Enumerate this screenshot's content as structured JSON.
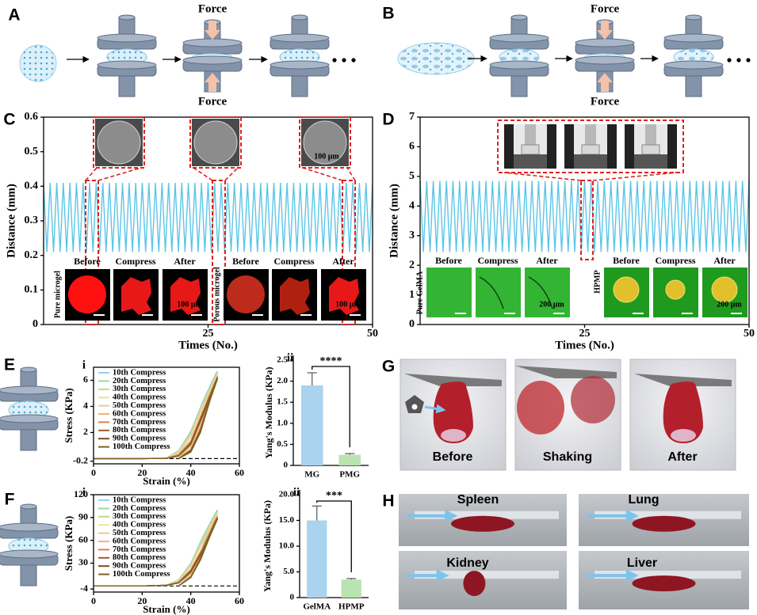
{
  "panel_labels": [
    "A",
    "B",
    "C",
    "D",
    "E",
    "F",
    "G",
    "H"
  ],
  "force": "Force",
  "G": {
    "labels": [
      "Before",
      "Shaking",
      "After"
    ]
  },
  "H": {
    "labels": [
      "Spleen",
      "Lung",
      "Kidney",
      "Liver"
    ]
  },
  "chart_data": [
    {
      "type": "line",
      "x_label": "Times (No.)",
      "y_label": "Distance (mm)",
      "xlim": [
        0,
        50
      ],
      "ylim": [
        0,
        0.6
      ],
      "xticks": [
        25,
        50
      ],
      "yticks": [
        0,
        0.1,
        0.2,
        0.3,
        0.4,
        0.5,
        0.6
      ],
      "annotations": {
        "inset_labels": [
          "Before",
          "Compress",
          "After"
        ],
        "samples": [
          "Pure microgel",
          "Porous microgel"
        ],
        "scale_bar": "100 μm"
      },
      "x": [
        0,
        0.5,
        1,
        1.5,
        2,
        2.5,
        3,
        3.5,
        4,
        4.5,
        5,
        5.5,
        6,
        6.5,
        7,
        7.5,
        8,
        8.5,
        9,
        9.5,
        10,
        10.5,
        11,
        11.5,
        12,
        12.5,
        13,
        13.5,
        14,
        14.5,
        15,
        15.5,
        16,
        16.5,
        17,
        17.5,
        18,
        18.5,
        19,
        19.5,
        20,
        20.5,
        21,
        21.5,
        22,
        22.5,
        23,
        23.5,
        24,
        24.5,
        25,
        25.5,
        26,
        26.5,
        27,
        27.5,
        28,
        28.5,
        29,
        29.5,
        30,
        30.5,
        31,
        31.5,
        32,
        32.5,
        33,
        33.5,
        34,
        34.5,
        35,
        35.5,
        36,
        36.5,
        37,
        37.5,
        38,
        38.5,
        39,
        39.5,
        40,
        40.5,
        41,
        41.5,
        42,
        42.5,
        43,
        43.5,
        44,
        44.5,
        45,
        45.5,
        46,
        46.5,
        47,
        47.5,
        48,
        48.5,
        49,
        49.5,
        50
      ],
      "series": [
        {
          "color": "#5cc6e6",
          "values": [
            0.41,
            0.21,
            0.41,
            0.21,
            0.41,
            0.21,
            0.41,
            0.21,
            0.41,
            0.21,
            0.41,
            0.21,
            0.41,
            0.21,
            0.41,
            0.21,
            0.41,
            0.21,
            0.41,
            0.21,
            0.41,
            0.21,
            0.41,
            0.21,
            0.41,
            0.21,
            0.41,
            0.21,
            0.41,
            0.21,
            0.41,
            0.21,
            0.41,
            0.21,
            0.41,
            0.21,
            0.41,
            0.21,
            0.41,
            0.21,
            0.41,
            0.21,
            0.41,
            0.21,
            0.41,
            0.21,
            0.41,
            0.21,
            0.41,
            0.21,
            0.41,
            0.21,
            0.41,
            0.21,
            0.41,
            0.21,
            0.41,
            0.21,
            0.41,
            0.21,
            0.41,
            0.21,
            0.41,
            0.21,
            0.41,
            0.21,
            0.41,
            0.21,
            0.41,
            0.21,
            0.41,
            0.21,
            0.41,
            0.21,
            0.41,
            0.21,
            0.41,
            0.21,
            0.41,
            0.21,
            0.41,
            0.21,
            0.41,
            0.21,
            0.41,
            0.21,
            0.41,
            0.21,
            0.41,
            0.21,
            0.41,
            0.21,
            0.41,
            0.21,
            0.41,
            0.21,
            0.41,
            0.21,
            0.41,
            0.21,
            0.41
          ]
        }
      ]
    },
    {
      "type": "line",
      "x_label": "Times (No.)",
      "y_label": "Distance (mm)",
      "xlim": [
        0,
        50
      ],
      "ylim": [
        0,
        7
      ],
      "xticks": [
        25,
        50
      ],
      "yticks": [
        0,
        1,
        2,
        3,
        4,
        5,
        6,
        7
      ],
      "annotations": {
        "inset_labels": [
          "Before",
          "Compress",
          "After"
        ],
        "samples": [
          "Pure GelMA",
          "HPMP"
        ],
        "scale_bar": "200 μm"
      },
      "x": [
        0,
        0.5,
        1,
        1.5,
        2,
        2.5,
        3,
        3.5,
        4,
        4.5,
        5,
        5.5,
        6,
        6.5,
        7,
        7.5,
        8,
        8.5,
        9,
        9.5,
        10,
        10.5,
        11,
        11.5,
        12,
        12.5,
        13,
        13.5,
        14,
        14.5,
        15,
        15.5,
        16,
        16.5,
        17,
        17.5,
        18,
        18.5,
        19,
        19.5,
        20,
        20.5,
        21,
        21.5,
        22,
        22.5,
        23,
        23.5,
        24,
        24.5,
        25,
        25.5,
        26,
        26.5,
        27,
        27.5,
        28,
        28.5,
        29,
        29.5,
        30,
        30.5,
        31,
        31.5,
        32,
        32.5,
        33,
        33.5,
        34,
        34.5,
        35,
        35.5,
        36,
        36.5,
        37,
        37.5,
        38,
        38.5,
        39,
        39.5,
        40,
        40.5,
        41,
        41.5,
        42,
        42.5,
        43,
        43.5,
        44,
        44.5,
        45,
        45.5,
        46,
        46.5,
        47,
        47.5,
        48,
        48.5,
        49,
        49.5,
        50
      ],
      "series": [
        {
          "color": "#5cc6e6",
          "values": [
            4.85,
            2.45,
            4.85,
            2.45,
            4.85,
            2.45,
            4.85,
            2.45,
            4.85,
            2.45,
            4.85,
            2.45,
            4.85,
            2.45,
            4.85,
            2.45,
            4.85,
            2.45,
            4.85,
            2.45,
            4.85,
            2.45,
            4.85,
            2.45,
            4.85,
            2.45,
            4.85,
            2.45,
            4.85,
            2.45,
            4.85,
            2.45,
            4.85,
            2.45,
            4.85,
            2.45,
            4.85,
            2.45,
            4.85,
            2.45,
            4.85,
            2.45,
            4.85,
            2.45,
            4.85,
            2.45,
            4.85,
            2.45,
            4.85,
            2.45,
            4.85,
            2.45,
            4.85,
            2.45,
            4.85,
            2.45,
            4.85,
            2.45,
            4.85,
            2.45,
            4.85,
            2.45,
            4.85,
            2.45,
            4.85,
            2.45,
            4.85,
            2.45,
            4.85,
            2.45,
            4.85,
            2.45,
            4.85,
            2.45,
            4.85,
            2.45,
            4.85,
            2.45,
            4.85,
            2.45,
            4.85,
            2.45,
            4.85,
            2.45,
            4.85,
            2.45,
            4.85,
            2.45,
            4.85,
            2.45,
            4.85,
            2.45,
            4.85,
            2.45,
            4.85,
            2.45,
            4.85,
            2.45,
            4.85,
            2.45,
            4.85
          ]
        }
      ]
    },
    {
      "type": "line",
      "subpanel": "i",
      "x_label": "Strain (%)",
      "y_label": "Stress (KPa)",
      "xlim": [
        0,
        60
      ],
      "ylim": [
        -0.4,
        7
      ],
      "xticks": [
        0,
        20,
        40,
        60
      ],
      "yticks": [
        -0.2,
        2,
        4,
        6
      ],
      "hline": 0,
      "x": [
        0,
        20,
        30,
        35,
        40,
        45,
        50,
        51,
        48,
        44,
        40,
        35
      ],
      "series": [
        {
          "name": "10th Compress",
          "color": "#9ccfe9",
          "values": [
            0,
            0,
            0.05,
            0.6,
            2.1,
            4.4,
            6.4,
            6.7,
            5.2,
            3.0,
            1.1,
            0
          ]
        },
        {
          "name": "20th Compress",
          "color": "#9fd6a8",
          "values": [
            0,
            0,
            0.05,
            0.6,
            2.0,
            4.3,
            6.3,
            6.6,
            5.1,
            2.9,
            1.1,
            0
          ]
        },
        {
          "name": "30th Compress",
          "color": "#b6dd8c",
          "values": [
            0,
            0,
            0.05,
            0.5,
            1.9,
            4.2,
            6.2,
            6.5,
            5.0,
            2.8,
            1.0,
            0
          ]
        },
        {
          "name": "40th Compress",
          "color": "#eee39c",
          "values": [
            0,
            0,
            0.04,
            0.5,
            1.8,
            4.1,
            6.1,
            6.5,
            5.0,
            2.7,
            0.9,
            0
          ]
        },
        {
          "name": "50th Compress",
          "color": "#ecc896",
          "values": [
            0,
            0,
            0.04,
            0.4,
            1.7,
            4.0,
            6.0,
            6.4,
            4.9,
            2.6,
            0.9,
            0
          ]
        },
        {
          "name": "60th Compress",
          "color": "#f0b27e",
          "values": [
            0,
            0,
            0.03,
            0.3,
            1.4,
            3.7,
            5.9,
            6.3,
            4.8,
            2.4,
            0.7,
            0
          ]
        },
        {
          "name": "70th Compress",
          "color": "#d4844a",
          "values": [
            0,
            0,
            0.03,
            0.3,
            1.3,
            3.6,
            5.8,
            6.3,
            4.7,
            2.3,
            0.7,
            0
          ]
        },
        {
          "name": "80th Compress",
          "color": "#a5582a",
          "values": [
            0,
            0,
            0.02,
            0.2,
            1.2,
            3.5,
            5.8,
            6.2,
            4.6,
            2.2,
            0.6,
            0
          ]
        },
        {
          "name": "90th Compress",
          "color": "#7e4a22",
          "values": [
            0,
            0,
            0.02,
            0.2,
            1.1,
            3.4,
            5.7,
            6.2,
            4.6,
            2.1,
            0.6,
            0
          ]
        },
        {
          "name": "100th Compress",
          "color": "#7d6426",
          "values": [
            0,
            0,
            0.02,
            0.2,
            1.1,
            3.3,
            5.7,
            6.1,
            4.5,
            2.0,
            0.5,
            0
          ]
        }
      ]
    },
    {
      "type": "bar",
      "subpanel": "ii",
      "y_label": "Yang's Modulus (KPa)",
      "categories": [
        "MG",
        "PMG"
      ],
      "values": [
        1.9,
        0.25
      ],
      "errors": [
        0.3,
        0.03
      ],
      "colors": [
        "#a9d3ee",
        "#b9e3b0"
      ],
      "ylim": [
        0,
        2.5
      ],
      "yticks": [
        0,
        0.5,
        {
          "value": 1,
          "label": "1.0"
        },
        1.5,
        {
          "value": 2,
          "label": "2.0"
        },
        2.5
      ],
      "significance": "****"
    },
    {
      "type": "line",
      "subpanel": "i",
      "x_label": "Strain (%)",
      "y_label": "Stress (KPa)",
      "xlim": [
        0,
        60
      ],
      "ylim": [
        -8,
        120
      ],
      "xticks": [
        0,
        20,
        40,
        60
      ],
      "yticks": [
        -4,
        30,
        60,
        90,
        120
      ],
      "hline": 0,
      "x": [
        0,
        20,
        30,
        35,
        40,
        45,
        50,
        51,
        48,
        44,
        40,
        35
      ],
      "series": [
        {
          "name": "10th Compress",
          "color": "#9ccfe9",
          "values": [
            0,
            0,
            1,
            8,
            30,
            65,
            95,
            100,
            78,
            45,
            18,
            0
          ]
        },
        {
          "name": "20th Compress",
          "color": "#9fd6a8",
          "values": [
            0,
            0,
            1,
            8,
            29,
            64,
            94,
            99,
            77,
            44,
            17,
            0
          ]
        },
        {
          "name": "30th Compress",
          "color": "#b6dd8c",
          "values": [
            0,
            0,
            1,
            7,
            28,
            62,
            92,
            97,
            75,
            43,
            16,
            0
          ]
        },
        {
          "name": "40th Compress",
          "color": "#eee39c",
          "values": [
            0,
            0,
            1,
            7,
            27,
            60,
            91,
            96,
            74,
            42,
            16,
            0
          ]
        },
        {
          "name": "50th Compress",
          "color": "#ecc896",
          "values": [
            0,
            0,
            1,
            6,
            26,
            58,
            90,
            95,
            73,
            41,
            15,
            0
          ]
        },
        {
          "name": "60th Compress",
          "color": "#f0b27e",
          "values": [
            0,
            0,
            1,
            5,
            22,
            52,
            86,
            92,
            70,
            38,
            13,
            0
          ]
        },
        {
          "name": "70th Compress",
          "color": "#d4844a",
          "values": [
            0,
            0,
            1,
            5,
            21,
            50,
            85,
            91,
            69,
            37,
            12,
            0
          ]
        },
        {
          "name": "80th Compress",
          "color": "#a5582a",
          "values": [
            0,
            0,
            1,
            4,
            20,
            48,
            84,
            90,
            68,
            36,
            12,
            0
          ]
        },
        {
          "name": "90th Compress",
          "color": "#7e4a22",
          "values": [
            0,
            0,
            1,
            4,
            19,
            47,
            83,
            89,
            67,
            35,
            11,
            0
          ]
        },
        {
          "name": "100th Compress",
          "color": "#7d6426",
          "values": [
            0,
            0,
            1,
            4,
            18,
            46,
            82,
            88,
            66,
            34,
            11,
            0
          ]
        }
      ]
    },
    {
      "type": "bar",
      "subpanel": "ii",
      "y_label": "Yang's Modulus (KPa)",
      "categories": [
        "GelMA",
        "HPMP"
      ],
      "values": [
        15,
        3.5
      ],
      "errors": [
        2.8,
        0.2
      ],
      "colors": [
        "#a9d3ee",
        "#b9e3b0"
      ],
      "ylim": [
        0,
        20
      ],
      "yticks": [
        0,
        {
          "value": 5,
          "label": "5.0"
        },
        {
          "value": 10,
          "label": "10.0"
        },
        {
          "value": 15,
          "label": "15.0"
        },
        {
          "value": 20,
          "label": "20.0"
        }
      ],
      "significance": "***"
    }
  ]
}
